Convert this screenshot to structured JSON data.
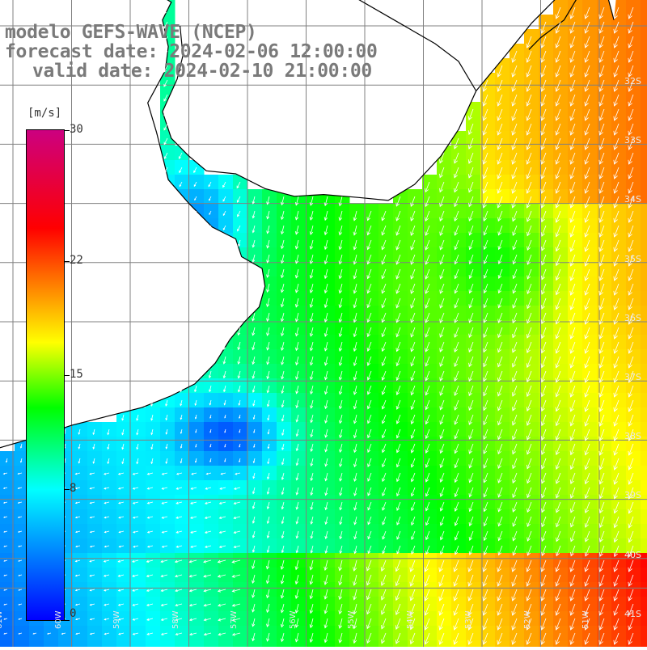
{
  "title": {
    "line1": "modelo GEFS-WAVE (NCEP)",
    "line2": "forecast date: 2024-02-06 12:00:00",
    "line3": "valid date: 2024-02-10 21:00:00"
  },
  "colorbar": {
    "unit": "[m/s]",
    "min": 0,
    "max": 30,
    "ticks": [
      "30",
      "22",
      "15",
      "8",
      "0"
    ],
    "tick_values": [
      30,
      22,
      15,
      8,
      0
    ],
    "colors": [
      "#0000ff",
      "#00ffff",
      "#00ff00",
      "#ffff00",
      "#ff0000",
      "#cc0080"
    ]
  },
  "map": {
    "lat_labels": [
      "32S",
      "33S",
      "34S",
      "35S",
      "36S",
      "37S",
      "38S",
      "39S",
      "40S",
      "41S"
    ],
    "lat_values": [
      -32,
      -33,
      -34,
      -35,
      -36,
      -37,
      -38,
      -39,
      -40,
      -41
    ],
    "lon_labels": [
      "61W",
      "60W",
      "59W",
      "58W",
      "57W",
      "56W",
      "55W",
      "54W",
      "53W",
      "52W",
      "51W"
    ],
    "lon_values": [
      -61,
      -60,
      -59,
      -58,
      -57,
      -56,
      -55,
      -54,
      -53,
      -52,
      -51
    ],
    "land_color": "#ffffff",
    "grid_color": "#808080",
    "coast_color": "#000000",
    "arrow_color": "#ffffff"
  }
}
